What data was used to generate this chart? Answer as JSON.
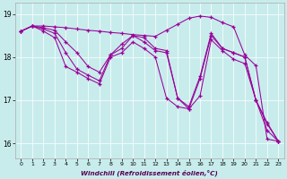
{
  "xlabel": "Windchill (Refroidissement éolien,°C)",
  "background_color": "#c8ecec",
  "line_color": "#990099",
  "xlim": [
    -0.5,
    23.5
  ],
  "ylim": [
    15.65,
    19.25
  ],
  "yticks": [
    16,
    17,
    18,
    19
  ],
  "xticks": [
    0,
    1,
    2,
    3,
    4,
    5,
    6,
    7,
    8,
    9,
    10,
    11,
    12,
    13,
    14,
    15,
    16,
    17,
    18,
    19,
    20,
    21,
    22,
    23
  ],
  "lines": [
    [
      18.6,
      18.72,
      18.72,
      18.7,
      18.68,
      18.65,
      18.62,
      18.6,
      18.57,
      18.55,
      18.52,
      18.5,
      18.48,
      18.62,
      18.76,
      18.9,
      18.95,
      18.92,
      18.8,
      18.7,
      18.05,
      17.8,
      16.1,
      16.05
    ],
    [
      18.6,
      18.72,
      18.68,
      18.62,
      18.35,
      18.1,
      17.78,
      17.65,
      18.05,
      18.3,
      18.5,
      18.45,
      18.2,
      18.15,
      17.05,
      16.85,
      17.55,
      18.55,
      18.2,
      18.1,
      18.0,
      17.0,
      16.48,
      16.05
    ],
    [
      18.6,
      18.72,
      18.65,
      18.55,
      18.1,
      17.72,
      17.58,
      17.45,
      18.05,
      18.2,
      18.5,
      18.35,
      18.15,
      18.1,
      17.05,
      16.8,
      17.5,
      18.5,
      18.2,
      18.1,
      18.0,
      17.0,
      16.45,
      16.05
    ],
    [
      18.6,
      18.72,
      18.6,
      18.45,
      17.78,
      17.65,
      17.5,
      17.38,
      18.0,
      18.1,
      18.35,
      18.2,
      18.0,
      17.05,
      16.85,
      16.8,
      17.1,
      18.4,
      18.15,
      17.95,
      17.85,
      17.0,
      16.3,
      16.05
    ]
  ]
}
